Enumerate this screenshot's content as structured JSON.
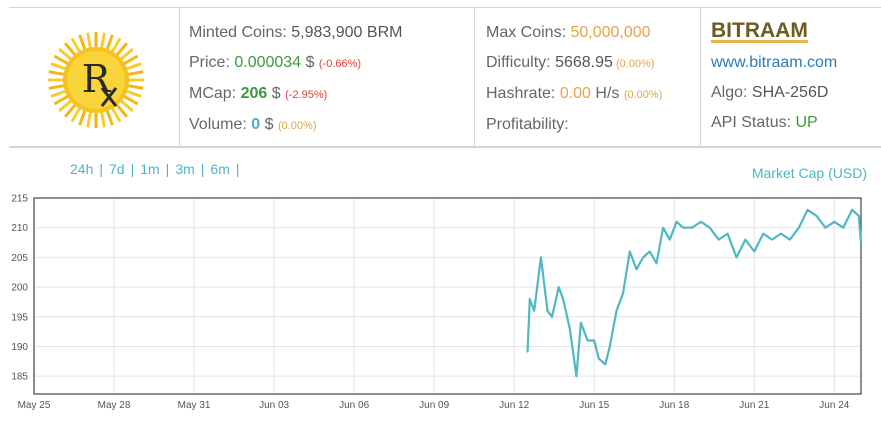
{
  "coin": {
    "name": "BITRAAM",
    "url": "www.bitraam.com",
    "algo_label": "Algo: ",
    "algo": "SHA-256D",
    "api_label": "API Status: ",
    "api_status": "UP",
    "logo_icon": "rx-sun-logo"
  },
  "stats": {
    "minted_label": "Minted Coins: ",
    "minted_value": "5,983,900 BRM",
    "price_label": "Price: ",
    "price_value": "0.000034",
    "price_unit": " $ ",
    "price_change": "(-0.66%)",
    "mcap_label": "MCap: ",
    "mcap_value": "206",
    "mcap_unit": " $ ",
    "mcap_change": "(-2.95%)",
    "volume_label": "Volume: ",
    "volume_value": "0",
    "volume_unit": " $ ",
    "volume_change": "(0.00%)",
    "maxcoins_label": "Max Coins: ",
    "maxcoins_value": "50,000,000",
    "difficulty_label": "Difficulty: ",
    "difficulty_value": "5668.95",
    "difficulty_change": " (0.00%)",
    "hashrate_label": "Hashrate: ",
    "hashrate_value": "0.00",
    "hashrate_unit": " H/s ",
    "hashrate_change": "(0.00%)",
    "profitability_label": "Profitability:"
  },
  "ranges": [
    "24h",
    "7d",
    "1m",
    "3m",
    "6m"
  ],
  "chart_label": "Market Cap (USD)",
  "colors": {
    "line": "#4fb8c2",
    "accent": "#4cb7c4",
    "green": "#3a9a3a",
    "red": "#d9443a",
    "orange": "#e4a34a"
  },
  "chart_data": {
    "type": "line",
    "title": "Market Cap (USD)",
    "x_ticks": [
      "May 25",
      "May 28",
      "May 31",
      "Jun 03",
      "Jun 06",
      "Jun 09",
      "Jun 12",
      "Jun 15",
      "Jun 18",
      "Jun 21",
      "Jun 24"
    ],
    "y_ticks": [
      "185",
      "190",
      "195",
      "200",
      "205",
      "210",
      "215"
    ],
    "xlim": [
      "2018-05-25",
      "2018-06-25"
    ],
    "ylim": [
      182,
      215
    ],
    "grid": true,
    "series": [
      {
        "x": [
          "2018-06-12 12:00",
          "2018-06-12 14:00",
          "2018-06-12 18:00",
          "2018-06-13 00:00",
          "2018-06-13 06:00",
          "2018-06-13 10:00",
          "2018-06-13 16:00",
          "2018-06-13 20:00",
          "2018-06-14 02:00",
          "2018-06-14 08:00",
          "2018-06-14 12:00",
          "2018-06-14 18:00",
          "2018-06-15 00:00",
          "2018-06-15 04:00",
          "2018-06-15 10:00",
          "2018-06-15 14:00",
          "2018-06-15 20:00",
          "2018-06-16 02:00",
          "2018-06-16 08:00",
          "2018-06-16 14:00",
          "2018-06-16 20:00",
          "2018-06-17 02:00",
          "2018-06-17 08:00",
          "2018-06-17 14:00",
          "2018-06-17 20:00",
          "2018-06-18 02:00",
          "2018-06-18 08:00",
          "2018-06-18 16:00",
          "2018-06-19 00:00",
          "2018-06-19 08:00",
          "2018-06-19 16:00",
          "2018-06-20 00:00",
          "2018-06-20 08:00",
          "2018-06-20 16:00",
          "2018-06-21 00:00",
          "2018-06-21 08:00",
          "2018-06-21 16:00",
          "2018-06-22 00:00",
          "2018-06-22 08:00",
          "2018-06-22 16:00",
          "2018-06-23 00:00",
          "2018-06-23 08:00",
          "2018-06-23 16:00",
          "2018-06-24 00:00",
          "2018-06-24 08:00",
          "2018-06-24 16:00",
          "2018-06-24 22:00",
          "2018-06-25 00:00"
        ],
        "y": [
          189,
          198,
          196,
          205,
          196,
          195,
          200,
          198,
          193,
          185,
          194,
          191,
          191,
          188,
          187,
          190,
          196,
          199,
          206,
          203,
          205,
          206,
          204,
          210,
          208,
          211,
          210,
          210,
          211,
          210,
          208,
          209,
          205,
          208,
          206,
          209,
          208,
          209,
          208,
          210,
          213,
          212,
          210,
          211,
          210,
          213,
          212,
          207.5
        ]
      }
    ]
  }
}
